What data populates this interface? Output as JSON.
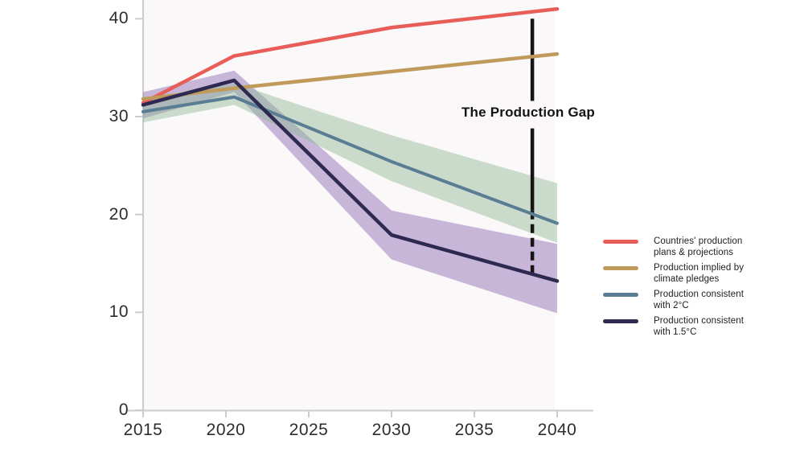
{
  "gap_annotation": {
    "label": "The Production Gap"
  },
  "colors": {
    "plans": "#e85d57",
    "pledges": "#bf9a5b",
    "two_degrees": "#5a7d94",
    "one_point_five": "#2e2951",
    "band_two_degrees": "#8db894",
    "band_one_point_five": "#7e5bab",
    "gap_line": "#151515",
    "axis": "#cccccc",
    "tick_text": "#2d2d2d",
    "plot_bg": "#fbf8f9"
  },
  "legend": {
    "items": [
      {
        "label": "Countries' production\nplans & projections",
        "color_key": "plans"
      },
      {
        "label": "Production implied by\nclimate pledges",
        "color_key": "pledges"
      },
      {
        "label": "Production consistent\nwith 2°C",
        "color_key": "two_degrees"
      },
      {
        "label": "Production consistent\nwith 1.5°C",
        "color_key": "one_point_five"
      }
    ]
  },
  "chart_data": {
    "type": "line",
    "title": "The Production Gap",
    "xlabel": "",
    "ylabel": "",
    "xlim": [
      2015,
      2040
    ],
    "ylim": [
      0,
      42
    ],
    "grid": false,
    "legend_position": "right",
    "x_ticks": [
      2015,
      2020,
      2025,
      2030,
      2035,
      2040
    ],
    "y_ticks": [
      0,
      10,
      20,
      30,
      40
    ],
    "series": [
      {
        "name": "Countries' production plans & projections",
        "color_key": "plans",
        "width": 4.5,
        "x": [
          2015,
          2020.5,
          2030,
          2040
        ],
        "y": [
          31.4,
          36.2,
          39.1,
          41.0
        ]
      },
      {
        "name": "Production implied by climate pledges",
        "color_key": "pledges",
        "width": 4.5,
        "x": [
          2015,
          2020.5,
          2040
        ],
        "y": [
          31.8,
          32.9,
          36.4
        ]
      },
      {
        "name": "Production consistent with 2°C",
        "color_key": "two_degrees",
        "width": 4,
        "x": [
          2015,
          2020.5,
          2030,
          2040
        ],
        "y": [
          30.5,
          32.0,
          25.4,
          19.1
        ]
      },
      {
        "name": "Production consistent with 1.5°C",
        "color_key": "one_point_five",
        "width": 4.5,
        "x": [
          2015,
          2020.5,
          2030,
          2040
        ],
        "y": [
          31.2,
          33.7,
          17.9,
          13.2
        ]
      }
    ],
    "bands": [
      {
        "name": "1.5C uncertainty band",
        "color_key": "band_one_point_five",
        "opacity": 0.42,
        "x": [
          2015,
          2020.5,
          2030,
          2040
        ],
        "upper": [
          32.5,
          34.7,
          20.4,
          17.0
        ],
        "lower": [
          29.8,
          32.5,
          15.4,
          9.9
        ]
      },
      {
        "name": "2C uncertainty band",
        "color_key": "band_two_degrees",
        "opacity": 0.45,
        "x": [
          2015,
          2020.5,
          2030,
          2040
        ],
        "upper": [
          31.6,
          33.4,
          28.1,
          23.2
        ],
        "lower": [
          29.4,
          31.2,
          23.4,
          17.1
        ]
      }
    ],
    "gap_line": {
      "x": 2038.5,
      "label": "The Production Gap",
      "segments": [
        {
          "from": 40.0,
          "to": 31.6,
          "style": "solid"
        },
        {
          "from": 28.8,
          "to": 20.4,
          "style": "solid"
        },
        {
          "from": 20.4,
          "to": 13.9,
          "style": "dashed"
        }
      ]
    }
  }
}
